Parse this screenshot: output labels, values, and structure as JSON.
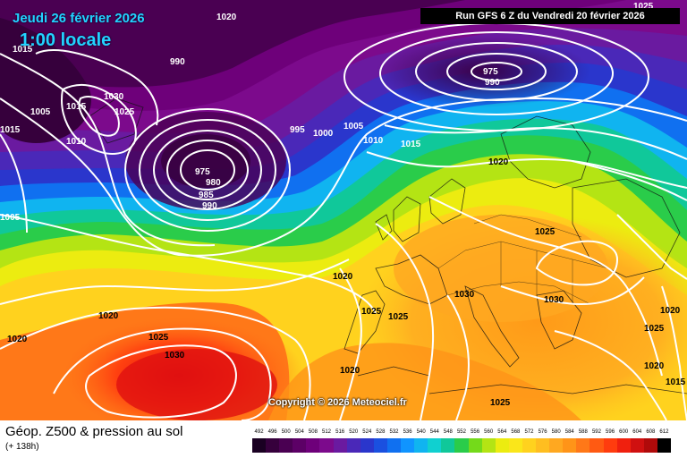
{
  "header": {
    "date": "Jeudi 26 février 2026",
    "time": "1:00 locale",
    "run": "Run GFS 6 Z du Vendredi 20 février 2026",
    "copyright": "Copyright © 2026 Meteociel.fr"
  },
  "footer": {
    "title": "Géop. Z500 & pression au sol",
    "subtitle": "(+ 138h)"
  },
  "legend": {
    "values": [
      "492",
      "496",
      "500",
      "504",
      "508",
      "512",
      "516",
      "520",
      "524",
      "528",
      "532",
      "536",
      "540",
      "544",
      "548",
      "552",
      "556",
      "560",
      "564",
      "568",
      "572",
      "576",
      "580",
      "584",
      "588",
      "592",
      "596",
      "600",
      "604",
      "608",
      "612"
    ],
    "colors": [
      "#1a0022",
      "#36003c",
      "#4a0052",
      "#5c0066",
      "#6e007a",
      "#7c0a8c",
      "#6a1aa0",
      "#4a28b8",
      "#2a36cc",
      "#1a50e0",
      "#1070f0",
      "#1094ff",
      "#10b4f0",
      "#10d0d0",
      "#10c89a",
      "#2acc4a",
      "#74da1a",
      "#b4e414",
      "#ecec10",
      "#fae61a",
      "#ffd21e",
      "#ffbe20",
      "#ffa820",
      "#ff9418",
      "#ff7818",
      "#ff5a12",
      "#ff3c0e",
      "#f0200e",
      "#d01010",
      "#b00a0a",
      "#000000"
    ]
  },
  "pressure_labels": [
    {
      "text": "1020"
    },
    {
      "text": "1025"
    },
    {
      "text": "1015"
    },
    {
      "text": "990"
    },
    {
      "text": "1030"
    },
    {
      "text": "1005"
    },
    {
      "text": "1015"
    },
    {
      "text": "1025"
    },
    {
      "text": "1015"
    },
    {
      "text": "1010"
    },
    {
      "text": "975"
    },
    {
      "text": "980"
    },
    {
      "text": "985"
    },
    {
      "text": "990"
    },
    {
      "text": "995"
    },
    {
      "text": "1000"
    },
    {
      "text": "1005"
    },
    {
      "text": "1010"
    },
    {
      "text": "1015"
    },
    {
      "text": "975"
    },
    {
      "text": "990"
    },
    {
      "text": "1020"
    },
    {
      "text": "1005"
    },
    {
      "text": "1025"
    },
    {
      "text": "1020"
    },
    {
      "text": "1030"
    },
    {
      "text": "1030"
    },
    {
      "text": "1020"
    },
    {
      "text": "1025"
    },
    {
      "text": "1025"
    },
    {
      "text": "1020"
    },
    {
      "text": "1020"
    },
    {
      "text": "1025"
    },
    {
      "text": "1030"
    },
    {
      "text": "1020"
    },
    {
      "text": "1025"
    },
    {
      "text": "1020"
    },
    {
      "text": "1015"
    }
  ]
}
